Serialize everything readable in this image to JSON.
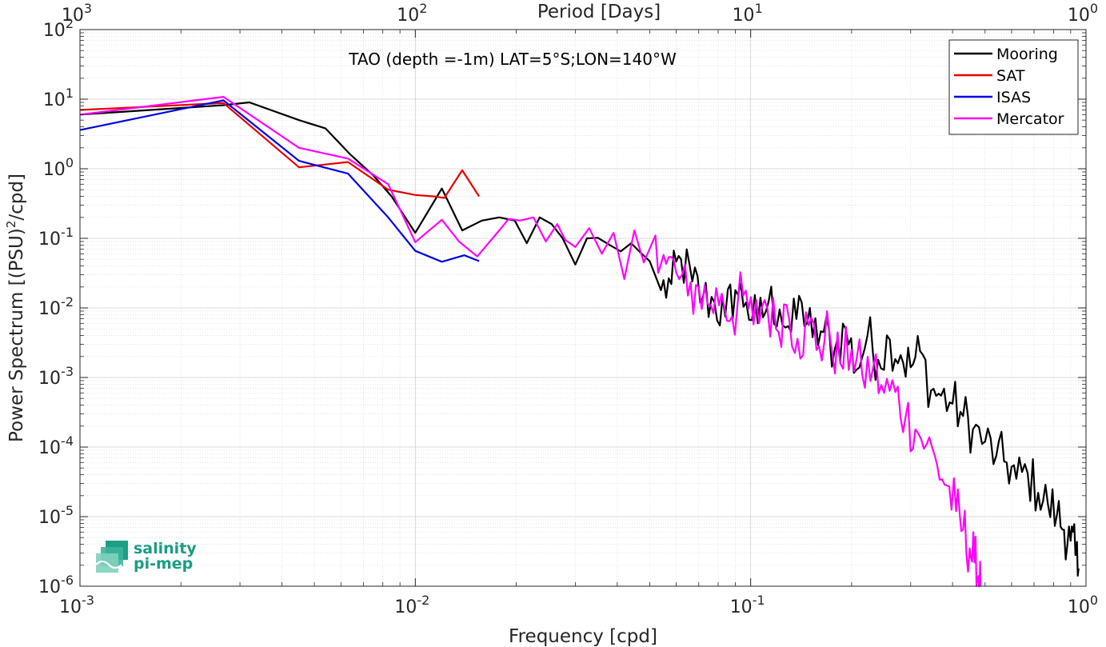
{
  "chart_data": {
    "type": "line",
    "title": "TAO (depth =-1m) LAT=5°S;LON=140°W",
    "xlabel": "Frequency [cpd]",
    "ylabel": "Power Spectrum [(PSU)²/cpd]",
    "x2label": "Period [Days]",
    "xscale": "log",
    "yscale": "log",
    "xlim": [
      0.001,
      1
    ],
    "ylim": [
      1e-06,
      100
    ],
    "grid": true,
    "legend_position": "top-right",
    "x_ticks": [
      {
        "value": 0.001,
        "base": "10",
        "exp": "-3"
      },
      {
        "value": 0.01,
        "base": "10",
        "exp": "-2"
      },
      {
        "value": 0.1,
        "base": "10",
        "exp": "-1"
      },
      {
        "value": 1,
        "base": "10",
        "exp": "0"
      }
    ],
    "x2_ticks": [
      {
        "value": 0.001,
        "base": "10",
        "exp": "3"
      },
      {
        "value": 0.01,
        "base": "10",
        "exp": "2"
      },
      {
        "value": 0.1,
        "base": "10",
        "exp": "1"
      },
      {
        "value": 1,
        "base": "10",
        "exp": "0"
      }
    ],
    "y_ticks": [
      {
        "value": 100,
        "base": "10",
        "exp": "2"
      },
      {
        "value": 10,
        "base": "10",
        "exp": "1"
      },
      {
        "value": 1,
        "base": "10",
        "exp": "0"
      },
      {
        "value": 0.1,
        "base": "10",
        "exp": "-1"
      },
      {
        "value": 0.01,
        "base": "10",
        "exp": "-2"
      },
      {
        "value": 0.001,
        "base": "10",
        "exp": "-3"
      },
      {
        "value": 0.0001,
        "base": "10",
        "exp": "-4"
      },
      {
        "value": 1e-05,
        "base": "10",
        "exp": "-5"
      },
      {
        "value": 1e-06,
        "base": "10",
        "exp": "-6"
      }
    ],
    "series": [
      {
        "name": "Mooring",
        "color": "#000000",
        "x": [
          0.001,
          0.00268,
          0.0032,
          0.0045,
          0.0054,
          0.0064,
          0.0075,
          0.0085,
          0.01,
          0.012,
          0.0138,
          0.0158,
          0.0178,
          0.0198,
          0.0215,
          0.0235,
          0.0255,
          0.0275,
          0.03,
          0.0325,
          0.035,
          0.038,
          0.041,
          0.044,
          0.047,
          0.05,
          0.054,
          0.058,
          0.062,
          0.067,
          0.072,
          0.078,
          0.084,
          0.09,
          0.097,
          0.105,
          0.113,
          0.122,
          0.132,
          0.142,
          0.153,
          0.165,
          0.178,
          0.192,
          0.207,
          0.223,
          0.24,
          0.26,
          0.28,
          0.3,
          0.32,
          0.345,
          0.37,
          0.4,
          0.43,
          0.46,
          0.5,
          0.54,
          0.58,
          0.62,
          0.67,
          0.72,
          0.77,
          0.82,
          0.86,
          0.9,
          0.93,
          0.95
        ],
        "y": [
          6.0,
          8.2,
          9.0,
          5.0,
          3.8,
          1.6,
          0.8,
          0.4,
          0.12,
          0.52,
          0.13,
          0.18,
          0.2,
          0.18,
          0.085,
          0.2,
          0.16,
          0.1,
          0.042,
          0.1,
          0.102,
          0.08,
          0.065,
          0.085,
          0.062,
          0.047,
          0.018,
          0.022,
          0.05,
          0.024,
          0.014,
          0.012,
          0.0075,
          0.018,
          0.012,
          0.006,
          0.012,
          0.0095,
          0.0045,
          0.012,
          0.0038,
          0.0045,
          0.0025,
          0.005,
          0.0013,
          0.004,
          0.0018,
          0.0035,
          0.0021,
          0.0014,
          0.0024,
          0.00065,
          0.00055,
          0.00042,
          0.00028,
          0.00018,
          0.00012,
          7.5e-05,
          6e-05,
          3.5e-05,
          4.2e-05,
          2.2e-05,
          1.5e-05,
          1.1e-05,
          6.5e-06,
          4.5e-06,
          2.8e-06,
          1.8e-06
        ],
        "noise": 0.18
      },
      {
        "name": "SAT",
        "color": "#e60000",
        "x": [
          0.001,
          0.00268,
          0.0045,
          0.0063,
          0.0083,
          0.01,
          0.0114,
          0.0122,
          0.0138,
          0.0155
        ],
        "y": [
          7.0,
          8.8,
          1.05,
          1.25,
          0.5,
          0.42,
          0.4,
          0.38,
          0.95,
          0.4
        ]
      },
      {
        "name": "ISAS",
        "color": "#0000e6",
        "x": [
          0.001,
          0.00268,
          0.0045,
          0.0063,
          0.0083,
          0.01,
          0.012,
          0.014,
          0.0155
        ],
        "y": [
          3.6,
          9.6,
          1.3,
          0.85,
          0.2,
          0.066,
          0.046,
          0.057,
          0.047
        ]
      },
      {
        "name": "Mercator",
        "color": "#ff00ff",
        "x": [
          0.001,
          0.00268,
          0.0045,
          0.0063,
          0.0083,
          0.01,
          0.012,
          0.0135,
          0.0153,
          0.017,
          0.019,
          0.0205,
          0.0225,
          0.0245,
          0.0265,
          0.028,
          0.03,
          0.033,
          0.036,
          0.039,
          0.042,
          0.045,
          0.048,
          0.052,
          0.056,
          0.06,
          0.065,
          0.07,
          0.076,
          0.082,
          0.088,
          0.095,
          0.102,
          0.11,
          0.119,
          0.128,
          0.138,
          0.149,
          0.16,
          0.172,
          0.185,
          0.2,
          0.215,
          0.232,
          0.25,
          0.27,
          0.29,
          0.31,
          0.335,
          0.36,
          0.385,
          0.41,
          0.43,
          0.45,
          0.465,
          0.478,
          0.485
        ],
        "y": [
          6.0,
          10.8,
          2.0,
          1.4,
          0.6,
          0.088,
          0.185,
          0.09,
          0.055,
          0.1,
          0.19,
          0.18,
          0.2,
          0.09,
          0.16,
          0.095,
          0.075,
          0.14,
          0.06,
          0.12,
          0.026,
          0.13,
          0.045,
          0.11,
          0.043,
          0.032,
          0.015,
          0.02,
          0.011,
          0.016,
          0.0075,
          0.015,
          0.0058,
          0.013,
          0.005,
          0.011,
          0.0036,
          0.0056,
          0.0028,
          0.0042,
          0.0016,
          0.0025,
          0.0011,
          0.0014,
          0.0006,
          0.00062,
          0.00028,
          0.00018,
          0.00011,
          5.5e-05,
          2.8e-05,
          1.2e-05,
          6.5e-06,
          3.5e-06,
          2.2e-06,
          1.4e-06,
          9e-07
        ],
        "noise": 0.2
      }
    ]
  },
  "logo": {
    "line1": "salinity",
    "line2": "pi-mep"
  }
}
